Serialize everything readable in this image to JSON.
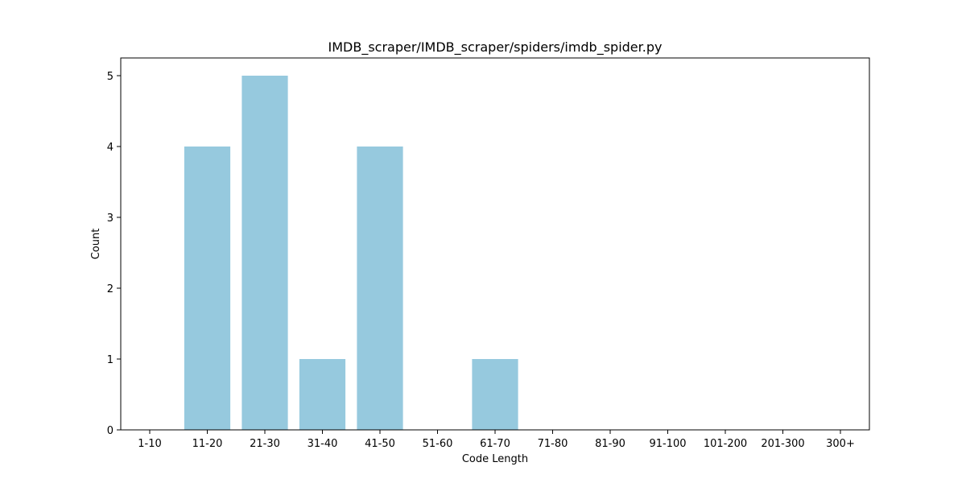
{
  "chart_data": {
    "type": "bar",
    "title": "IMDB_scraper/IMDB_scraper/spiders/imdb_spider.py",
    "xlabel": "Code Length",
    "ylabel": "Count",
    "categories": [
      "1-10",
      "11-20",
      "21-30",
      "31-40",
      "41-50",
      "51-60",
      "61-70",
      "71-80",
      "81-90",
      "91-100",
      "101-200",
      "201-300",
      "300+"
    ],
    "values": [
      0,
      4,
      5,
      1,
      4,
      0,
      1,
      0,
      0,
      0,
      0,
      0,
      0
    ],
    "ylim": [
      0,
      5.25
    ],
    "yticks": [
      0,
      1,
      2,
      3,
      4,
      5
    ],
    "bar_color": "#96c9de",
    "grid": false,
    "legend": "none"
  }
}
